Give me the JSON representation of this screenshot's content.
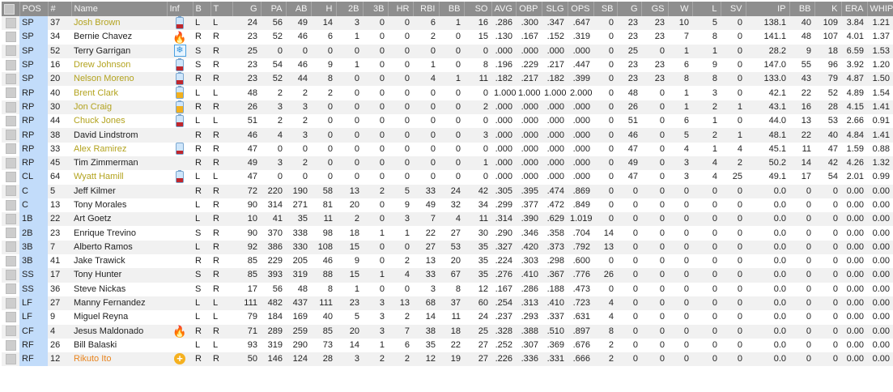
{
  "colors": {
    "header_bg": "#8e8e8e",
    "pos_column": "#c2dcfa",
    "name_yellow": "#b3a31e",
    "name_orange": "#e8841e",
    "battery_low": "#c0272d",
    "battery_mid": "#f2b01e"
  },
  "columns": [
    "POS",
    "#",
    "Name",
    "Inf",
    "B",
    "T",
    "G",
    "PA",
    "AB",
    "H",
    "2B",
    "3B",
    "HR",
    "RBI",
    "BB",
    "SO",
    "AVG",
    "OBP",
    "SLG",
    "OPS",
    "SB",
    "G",
    "GS",
    "W",
    "L",
    "SV",
    "IP",
    "BB",
    "K",
    "ERA",
    "WHIP"
  ],
  "rows": [
    {
      "pos": "SP",
      "num": "37",
      "name": "Josh Brown",
      "name_style": "yellow",
      "inf": "battery-low-icon",
      "b": "L",
      "t": "L",
      "stats": [
        "24",
        "56",
        "49",
        "14",
        "3",
        "0",
        "0",
        "6",
        "1",
        "16",
        ".286",
        ".300",
        ".347",
        ".647",
        "0",
        "23",
        "23",
        "10",
        "5",
        "0",
        "138.1",
        "40",
        "109",
        "3.84",
        "1.21"
      ]
    },
    {
      "pos": "SP",
      "num": "34",
      "name": "Bernie Chavez",
      "name_style": "normal",
      "inf": "fire-icon",
      "b": "R",
      "t": "R",
      "stats": [
        "23",
        "52",
        "46",
        "6",
        "1",
        "0",
        "0",
        "2",
        "0",
        "15",
        ".130",
        ".167",
        ".152",
        ".319",
        "0",
        "23",
        "23",
        "7",
        "8",
        "0",
        "141.1",
        "48",
        "107",
        "4.01",
        "1.37"
      ]
    },
    {
      "pos": "SP",
      "num": "52",
      "name": "Terry Garrigan",
      "name_style": "normal",
      "inf": "snowflake-icon",
      "b": "S",
      "t": "R",
      "stats": [
        "25",
        "0",
        "0",
        "0",
        "0",
        "0",
        "0",
        "0",
        "0",
        "0",
        ".000",
        ".000",
        ".000",
        ".000",
        "0",
        "25",
        "0",
        "1",
        "1",
        "0",
        "28.2",
        "9",
        "18",
        "6.59",
        "1.53"
      ]
    },
    {
      "pos": "SP",
      "num": "16",
      "name": "Drew Johnson",
      "name_style": "yellow",
      "inf": "battery-low-icon",
      "b": "S",
      "t": "R",
      "stats": [
        "23",
        "54",
        "46",
        "9",
        "1",
        "0",
        "0",
        "1",
        "0",
        "8",
        ".196",
        ".229",
        ".217",
        ".447",
        "0",
        "23",
        "23",
        "6",
        "9",
        "0",
        "147.0",
        "55",
        "96",
        "3.92",
        "1.20"
      ]
    },
    {
      "pos": "SP",
      "num": "20",
      "name": "Nelson Moreno",
      "name_style": "yellow",
      "inf": "battery-low-icon",
      "b": "R",
      "t": "R",
      "stats": [
        "23",
        "52",
        "44",
        "8",
        "0",
        "0",
        "0",
        "4",
        "1",
        "11",
        ".182",
        ".217",
        ".182",
        ".399",
        "0",
        "23",
        "23",
        "8",
        "8",
        "0",
        "133.0",
        "43",
        "79",
        "4.87",
        "1.50"
      ]
    },
    {
      "pos": "RP",
      "num": "40",
      "name": "Brent Clark",
      "name_style": "yellow",
      "inf": "battery-mid-icon",
      "b": "L",
      "t": "L",
      "stats": [
        "48",
        "2",
        "2",
        "2",
        "0",
        "0",
        "0",
        "0",
        "0",
        "0",
        "1.000",
        "1.000",
        "1.000",
        "2.000",
        "0",
        "48",
        "0",
        "1",
        "3",
        "0",
        "42.1",
        "22",
        "52",
        "4.89",
        "1.54"
      ]
    },
    {
      "pos": "RP",
      "num": "30",
      "name": "Jon Craig",
      "name_style": "yellow",
      "inf": "battery-mid-icon",
      "b": "R",
      "t": "R",
      "stats": [
        "26",
        "3",
        "3",
        "0",
        "0",
        "0",
        "0",
        "0",
        "0",
        "2",
        ".000",
        ".000",
        ".000",
        ".000",
        "0",
        "26",
        "0",
        "1",
        "2",
        "1",
        "43.1",
        "16",
        "28",
        "4.15",
        "1.41"
      ]
    },
    {
      "pos": "RP",
      "num": "44",
      "name": "Chuck Jones",
      "name_style": "yellow",
      "inf": "battery-low-icon",
      "b": "L",
      "t": "L",
      "stats": [
        "51",
        "2",
        "2",
        "0",
        "0",
        "0",
        "0",
        "0",
        "0",
        "0",
        ".000",
        ".000",
        ".000",
        ".000",
        "0",
        "51",
        "0",
        "6",
        "1",
        "0",
        "44.0",
        "13",
        "53",
        "2.66",
        "0.91"
      ]
    },
    {
      "pos": "RP",
      "num": "38",
      "name": "David Lindstrom",
      "name_style": "normal",
      "inf": "",
      "b": "R",
      "t": "R",
      "stats": [
        "46",
        "4",
        "3",
        "0",
        "0",
        "0",
        "0",
        "0",
        "0",
        "3",
        ".000",
        ".000",
        ".000",
        ".000",
        "0",
        "46",
        "0",
        "5",
        "2",
        "1",
        "48.1",
        "22",
        "40",
        "4.84",
        "1.41"
      ]
    },
    {
      "pos": "RP",
      "num": "33",
      "name": "Alex Ramirez",
      "name_style": "yellow",
      "inf": "battery-low-icon",
      "b": "R",
      "t": "R",
      "stats": [
        "47",
        "0",
        "0",
        "0",
        "0",
        "0",
        "0",
        "0",
        "0",
        "0",
        ".000",
        ".000",
        ".000",
        ".000",
        "0",
        "47",
        "0",
        "4",
        "1",
        "4",
        "45.1",
        "11",
        "47",
        "1.59",
        "0.88"
      ]
    },
    {
      "pos": "RP",
      "num": "45",
      "name": "Tim Zimmerman",
      "name_style": "normal",
      "inf": "",
      "b": "R",
      "t": "R",
      "stats": [
        "49",
        "3",
        "2",
        "0",
        "0",
        "0",
        "0",
        "0",
        "0",
        "1",
        ".000",
        ".000",
        ".000",
        ".000",
        "0",
        "49",
        "0",
        "3",
        "4",
        "2",
        "50.2",
        "14",
        "42",
        "4.26",
        "1.32"
      ]
    },
    {
      "pos": "CL",
      "num": "64",
      "name": "Wyatt Hamill",
      "name_style": "yellow",
      "inf": "battery-low-icon",
      "b": "L",
      "t": "L",
      "stats": [
        "47",
        "0",
        "0",
        "0",
        "0",
        "0",
        "0",
        "0",
        "0",
        "0",
        ".000",
        ".000",
        ".000",
        ".000",
        "0",
        "47",
        "0",
        "3",
        "4",
        "25",
        "49.1",
        "17",
        "54",
        "2.01",
        "0.99"
      ]
    },
    {
      "pos": "C",
      "num": "5",
      "name": "Jeff Kilmer",
      "name_style": "normal",
      "inf": "",
      "b": "R",
      "t": "R",
      "stats": [
        "72",
        "220",
        "190",
        "58",
        "13",
        "2",
        "5",
        "33",
        "24",
        "42",
        ".305",
        ".395",
        ".474",
        ".869",
        "0",
        "0",
        "0",
        "0",
        "0",
        "0",
        "0.0",
        "0",
        "0",
        "0.00",
        "0.00"
      ]
    },
    {
      "pos": "C",
      "num": "13",
      "name": "Tony Morales",
      "name_style": "normal",
      "inf": "",
      "b": "L",
      "t": "R",
      "stats": [
        "90",
        "314",
        "271",
        "81",
        "20",
        "0",
        "9",
        "49",
        "32",
        "34",
        ".299",
        ".377",
        ".472",
        ".849",
        "0",
        "0",
        "0",
        "0",
        "0",
        "0",
        "0.0",
        "0",
        "0",
        "0.00",
        "0.00"
      ]
    },
    {
      "pos": "1B",
      "num": "22",
      "name": "Art Goetz",
      "name_style": "normal",
      "inf": "",
      "b": "L",
      "t": "R",
      "stats": [
        "10",
        "41",
        "35",
        "11",
        "2",
        "0",
        "3",
        "7",
        "4",
        "11",
        ".314",
        ".390",
        ".629",
        "1.019",
        "0",
        "0",
        "0",
        "0",
        "0",
        "0",
        "0.0",
        "0",
        "0",
        "0.00",
        "0.00"
      ]
    },
    {
      "pos": "2B",
      "num": "23",
      "name": "Enrique Trevino",
      "name_style": "normal",
      "inf": "",
      "b": "S",
      "t": "R",
      "stats": [
        "90",
        "370",
        "338",
        "98",
        "18",
        "1",
        "1",
        "22",
        "27",
        "30",
        ".290",
        ".346",
        ".358",
        ".704",
        "14",
        "0",
        "0",
        "0",
        "0",
        "0",
        "0.0",
        "0",
        "0",
        "0.00",
        "0.00"
      ]
    },
    {
      "pos": "3B",
      "num": "7",
      "name": "Alberto Ramos",
      "name_style": "normal",
      "inf": "",
      "b": "L",
      "t": "R",
      "stats": [
        "92",
        "386",
        "330",
        "108",
        "15",
        "0",
        "0",
        "27",
        "53",
        "35",
        ".327",
        ".420",
        ".373",
        ".792",
        "13",
        "0",
        "0",
        "0",
        "0",
        "0",
        "0.0",
        "0",
        "0",
        "0.00",
        "0.00"
      ]
    },
    {
      "pos": "3B",
      "num": "41",
      "name": "Jake Trawick",
      "name_style": "normal",
      "inf": "",
      "b": "R",
      "t": "R",
      "stats": [
        "85",
        "229",
        "205",
        "46",
        "9",
        "0",
        "2",
        "13",
        "20",
        "35",
        ".224",
        ".303",
        ".298",
        ".600",
        "0",
        "0",
        "0",
        "0",
        "0",
        "0",
        "0.0",
        "0",
        "0",
        "0.00",
        "0.00"
      ]
    },
    {
      "pos": "SS",
      "num": "17",
      "name": "Tony Hunter",
      "name_style": "normal",
      "inf": "",
      "b": "S",
      "t": "R",
      "stats": [
        "85",
        "393",
        "319",
        "88",
        "15",
        "1",
        "4",
        "33",
        "67",
        "35",
        ".276",
        ".410",
        ".367",
        ".776",
        "26",
        "0",
        "0",
        "0",
        "0",
        "0",
        "0.0",
        "0",
        "0",
        "0.00",
        "0.00"
      ]
    },
    {
      "pos": "SS",
      "num": "36",
      "name": "Steve Nickas",
      "name_style": "normal",
      "inf": "",
      "b": "S",
      "t": "R",
      "stats": [
        "17",
        "56",
        "48",
        "8",
        "1",
        "0",
        "0",
        "3",
        "8",
        "12",
        ".167",
        ".286",
        ".188",
        ".473",
        "0",
        "0",
        "0",
        "0",
        "0",
        "0",
        "0.0",
        "0",
        "0",
        "0.00",
        "0.00"
      ]
    },
    {
      "pos": "LF",
      "num": "27",
      "name": "Manny Fernandez",
      "name_style": "normal",
      "inf": "",
      "b": "L",
      "t": "L",
      "stats": [
        "111",
        "482",
        "437",
        "111",
        "23",
        "3",
        "13",
        "68",
        "37",
        "60",
        ".254",
        ".313",
        ".410",
        ".723",
        "4",
        "0",
        "0",
        "0",
        "0",
        "0",
        "0.0",
        "0",
        "0",
        "0.00",
        "0.00"
      ]
    },
    {
      "pos": "LF",
      "num": "9",
      "name": "Miguel Reyna",
      "name_style": "normal",
      "inf": "",
      "b": "L",
      "t": "L",
      "stats": [
        "79",
        "184",
        "169",
        "40",
        "5",
        "3",
        "2",
        "14",
        "11",
        "24",
        ".237",
        ".293",
        ".337",
        ".631",
        "4",
        "0",
        "0",
        "0",
        "0",
        "0",
        "0.0",
        "0",
        "0",
        "0.00",
        "0.00"
      ]
    },
    {
      "pos": "CF",
      "num": "4",
      "name": "Jesus Maldonado",
      "name_style": "normal",
      "inf": "fire-icon",
      "b": "R",
      "t": "R",
      "stats": [
        "71",
        "289",
        "259",
        "85",
        "20",
        "3",
        "7",
        "38",
        "18",
        "25",
        ".328",
        ".388",
        ".510",
        ".897",
        "8",
        "0",
        "0",
        "0",
        "0",
        "0",
        "0.0",
        "0",
        "0",
        "0.00",
        "0.00"
      ]
    },
    {
      "pos": "RF",
      "num": "26",
      "name": "Bill Balaski",
      "name_style": "normal",
      "inf": "",
      "b": "L",
      "t": "L",
      "stats": [
        "93",
        "319",
        "290",
        "73",
        "14",
        "1",
        "6",
        "35",
        "22",
        "27",
        ".252",
        ".307",
        ".369",
        ".676",
        "2",
        "0",
        "0",
        "0",
        "0",
        "0",
        "0.0",
        "0",
        "0",
        "0.00",
        "0.00"
      ]
    },
    {
      "pos": "RF",
      "num": "12",
      "name": "Rikuto Ito",
      "name_style": "orange",
      "inf": "plus-circle-icon",
      "b": "R",
      "t": "R",
      "stats": [
        "50",
        "146",
        "124",
        "28",
        "3",
        "2",
        "2",
        "12",
        "19",
        "27",
        ".226",
        ".336",
        ".331",
        ".666",
        "2",
        "0",
        "0",
        "0",
        "0",
        "0",
        "0.0",
        "0",
        "0",
        "0.00",
        "0.00"
      ]
    }
  ]
}
